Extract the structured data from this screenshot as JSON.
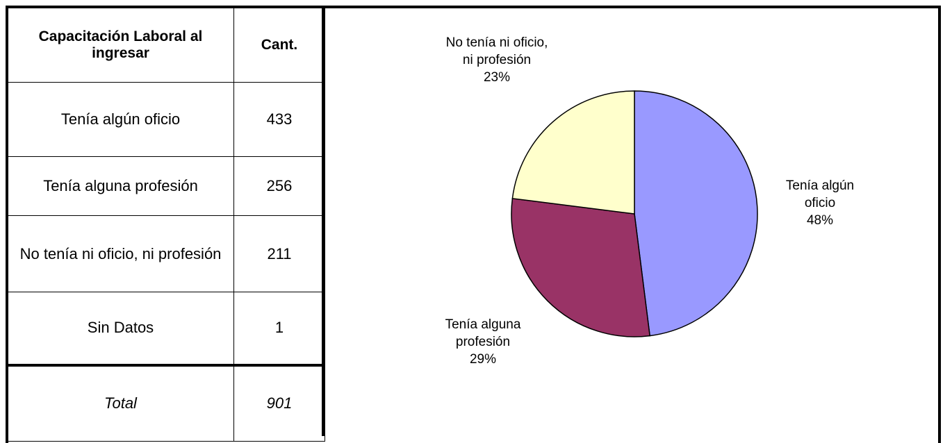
{
  "table": {
    "headers": [
      "Capacitación Laboral al ingresar",
      "Cant."
    ],
    "rows": [
      [
        "Tenía algún oficio",
        "433"
      ],
      [
        "Tenía alguna profesión",
        "256"
      ],
      [
        "No tenía ni oficio, ni profesión",
        "211"
      ],
      [
        "Sin Datos",
        "1"
      ]
    ],
    "total": [
      "Total",
      "901"
    ]
  },
  "chart_data": {
    "type": "pie",
    "categories": [
      "Tenía algún oficio",
      "Tenía alguna profesión",
      "No tenía ni oficio, ni profesión"
    ],
    "values": [
      48,
      29,
      23
    ],
    "value_labels": [
      "48%",
      "29%",
      "23%"
    ],
    "colors": [
      "#9999ff",
      "#993366",
      "#ffffcc"
    ]
  }
}
